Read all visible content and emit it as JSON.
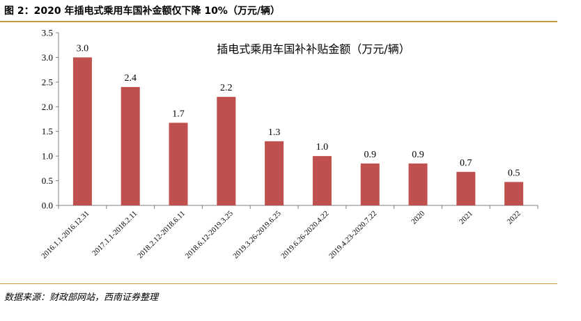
{
  "figure_title": "图 2：2020 年插电式乘用车国补金额仅下降 10%（万元/辆）",
  "source_note": "数据来源：财政部网站，西南证券整理",
  "colors": {
    "bar": "#c0504d",
    "rule": "#c59a3d",
    "axis": "#7f7f7f"
  },
  "chart_data": {
    "type": "bar",
    "title": "插电式乘用车国补补贴金额（万元/辆）",
    "xlabel": "",
    "ylabel": "",
    "categories": [
      "2016.1.1-2016.12.31",
      "2017.1.1-2018.2.11",
      "2018.2.12-2018.6.11",
      "2018.6.12-2019.3.25",
      "2019.3.26-2019.6.25",
      "2019.6.26-2020.4.22",
      "2019.4.23-2020.7.22",
      "2020",
      "2021",
      "2022"
    ],
    "values": [
      3.0,
      2.4,
      1.675,
      2.2,
      1.3,
      1.0,
      0.85,
      0.85,
      0.68,
      0.475
    ],
    "data_labels": [
      "3.0",
      "2.4",
      "1.7",
      "2.2",
      "1.3",
      "1.0",
      "0.9",
      "0.9",
      "0.7",
      "0.5"
    ],
    "yticks": [
      "0.0",
      "0.5",
      "1.0",
      "1.5",
      "2.0",
      "2.5",
      "3.0",
      "3.5"
    ],
    "ylim": [
      0,
      3.5
    ],
    "grid": false,
    "legend": "none"
  }
}
